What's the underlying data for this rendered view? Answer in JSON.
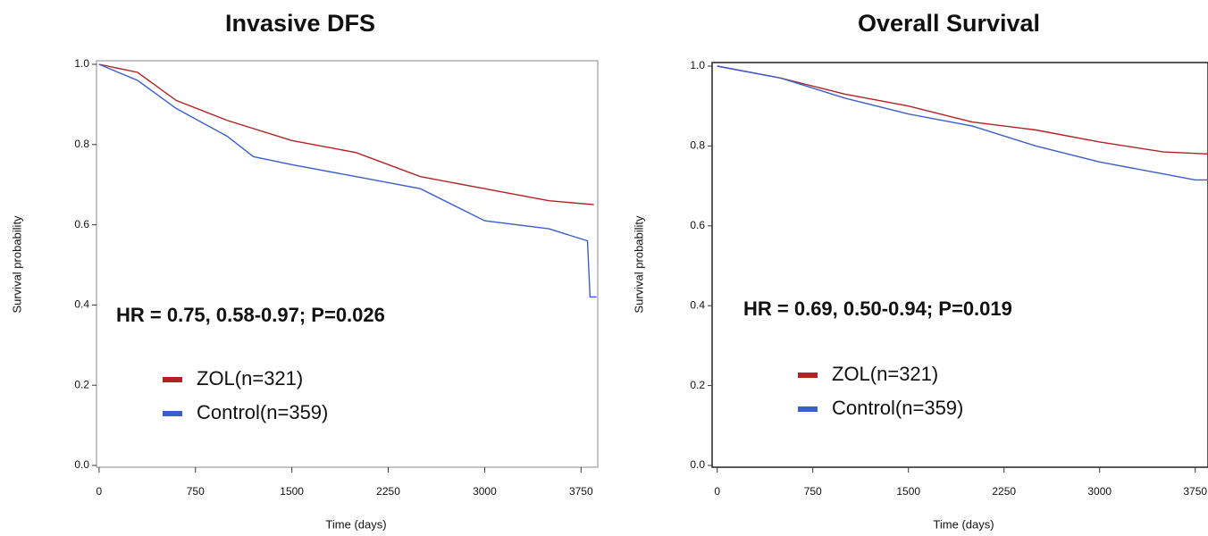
{
  "chart_data": [
    {
      "type": "line",
      "title": "Invasive DFS",
      "x_label": "Time (days)",
      "y_label": "Survival probability",
      "annotation": "HR = 0.75, 0.58-0.97; P=0.026",
      "xlim": [
        -20,
        3880
      ],
      "ylim": [
        0,
        1
      ],
      "xticks": [
        0,
        750,
        1500,
        2250,
        3000,
        3750
      ],
      "yticks": [
        {
          "value": 0,
          "label": "0.0"
        },
        0.2,
        0.4,
        0.6,
        0.8,
        {
          "value": 1,
          "label": "1.0"
        }
      ],
      "series": [
        {
          "name": "ZOL(n=321)",
          "color": "#b22222",
          "x": [
            0,
            300,
            600,
            1000,
            1500,
            2000,
            2500,
            3000,
            3500,
            3850
          ],
          "values": [
            1,
            0.98,
            0.91,
            0.86,
            0.81,
            0.78,
            0.72,
            0.69,
            0.66,
            0.65
          ]
        },
        {
          "name": "Control(n=359)",
          "color": "#3a5fcd",
          "x": [
            0,
            300,
            600,
            1000,
            1200,
            1500,
            2000,
            2500,
            3000,
            3500,
            3800,
            3820,
            3870
          ],
          "values": [
            1,
            0.96,
            0.89,
            0.82,
            0.77,
            0.75,
            0.72,
            0.69,
            0.61,
            0.59,
            0.56,
            0.42,
            0.42
          ]
        }
      ]
    },
    {
      "type": "line",
      "title": "Overall Survival",
      "x_label": "Time (days)",
      "y_label": "Survival probability",
      "annotation": "HR = 0.69, 0.50-0.94; P=0.019",
      "xlim": [
        -40,
        3850
      ],
      "ylim": [
        0,
        1
      ],
      "xticks": [
        0,
        750,
        1500,
        2250,
        3000,
        3750
      ],
      "yticks": [
        {
          "value": 0,
          "label": "0.0"
        },
        0.2,
        0.4,
        0.6,
        0.8,
        {
          "value": 1,
          "label": "1.0"
        }
      ],
      "series": [
        {
          "name": "ZOL(n=321)",
          "color": "#b22222",
          "x": [
            0,
            500,
            1000,
            1500,
            2000,
            2500,
            3000,
            3500,
            3850
          ],
          "values": [
            1,
            0.97,
            0.93,
            0.9,
            0.86,
            0.84,
            0.81,
            0.785,
            0.78
          ]
        },
        {
          "name": "Control(n=359)",
          "color": "#3a5fcd",
          "x": [
            0,
            500,
            1000,
            1500,
            2000,
            2500,
            3000,
            3500,
            3750,
            3850
          ],
          "values": [
            1,
            0.97,
            0.92,
            0.88,
            0.85,
            0.8,
            0.76,
            0.73,
            0.715,
            0.715
          ]
        }
      ]
    }
  ]
}
